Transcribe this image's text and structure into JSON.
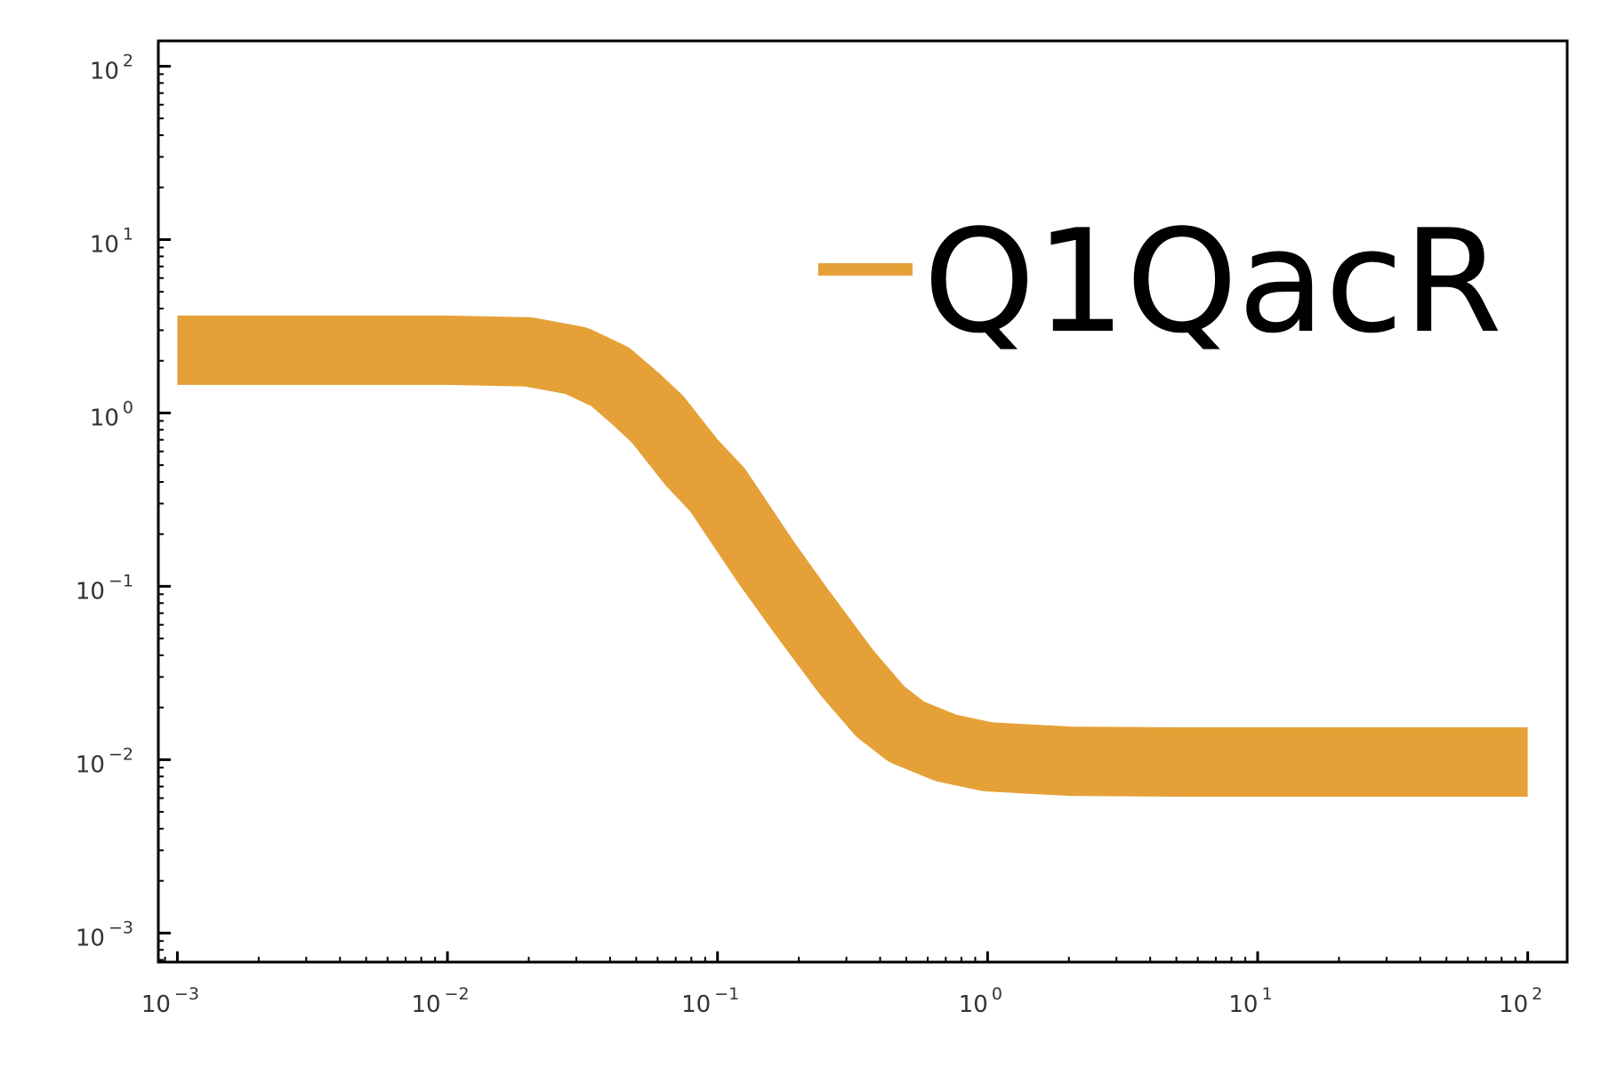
{
  "chart_data": {
    "type": "line",
    "x_scale": "log",
    "y_scale": "log",
    "xlim": [
      0.00085,
      140
    ],
    "ylim": [
      0.00068,
      140
    ],
    "x_ticks": [
      {
        "value": 0.001,
        "base": "10",
        "exp": "−3"
      },
      {
        "value": 0.01,
        "base": "10",
        "exp": "−2"
      },
      {
        "value": 0.1,
        "base": "10",
        "exp": "−1"
      },
      {
        "value": 1,
        "base": "10",
        "exp": "0"
      },
      {
        "value": 10,
        "base": "10",
        "exp": "1"
      },
      {
        "value": 100,
        "base": "10",
        "exp": "2"
      }
    ],
    "y_ticks": [
      {
        "value": 0.001,
        "base": "10",
        "exp": "−3"
      },
      {
        "value": 0.01,
        "base": "10",
        "exp": "−2"
      },
      {
        "value": 0.1,
        "base": "10",
        "exp": "−1"
      },
      {
        "value": 1,
        "base": "10",
        "exp": "0"
      },
      {
        "value": 10,
        "base": "10",
        "exp": "1"
      },
      {
        "value": 100,
        "base": "10",
        "exp": "2"
      }
    ],
    "grid": false,
    "legend_position": "top-right",
    "series": [
      {
        "name": "Q1QacR",
        "color": "#e5a137",
        "x": [
          0.001,
          0.01,
          0.02,
          0.03,
          0.04,
          0.05,
          0.06,
          0.08,
          0.1,
          0.15,
          0.2,
          0.3,
          0.4,
          0.5,
          0.7,
          1,
          2,
          5,
          10,
          100
        ],
        "y": [
          2.3,
          2.3,
          2.25,
          2.0,
          1.62,
          1.2,
          0.92,
          0.52,
          0.36,
          0.14,
          0.075,
          0.032,
          0.019,
          0.0145,
          0.0117,
          0.0104,
          0.0098,
          0.0097,
          0.0097,
          0.0097
        ]
      }
    ]
  }
}
